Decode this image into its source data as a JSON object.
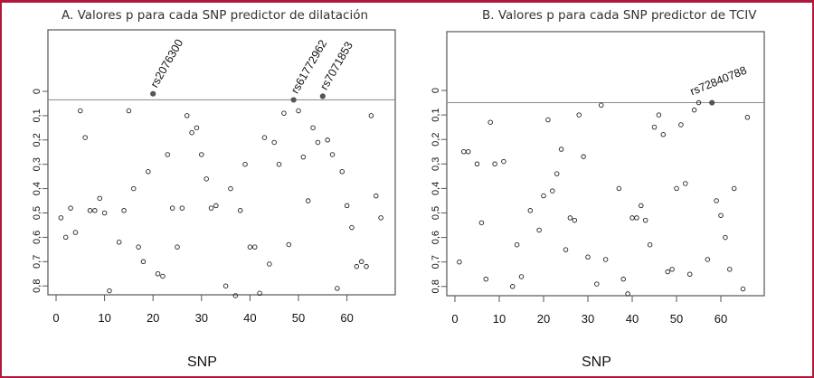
{
  "frame": {
    "border_color": "#b0173a"
  },
  "chart_data": [
    {
      "type": "scatter",
      "title": "A. Valores p para cada SNP predictor de dilatación",
      "xlabel": "SNP",
      "ylabel": "",
      "xlim": [
        0,
        67
      ],
      "ylim": [
        0.84,
        -0.12
      ],
      "y_inverted": true,
      "x_ticks": [
        0,
        10,
        20,
        30,
        40,
        50,
        60
      ],
      "y_ticks": [
        0,
        0.1,
        0.2,
        0.3,
        0.4,
        0.5,
        0.6,
        0.7,
        0.8
      ],
      "y_tick_labels": [
        "0",
        "0,1",
        "0,2",
        "0,3",
        "0,4",
        "0,5",
        "0,6",
        "0,7",
        "0,8"
      ],
      "threshold_line": 0.035,
      "grid": false,
      "x": [
        1,
        2,
        3,
        4,
        5,
        6,
        7,
        8,
        9,
        10,
        11,
        13,
        14,
        15,
        16,
        17,
        18,
        19,
        20,
        21,
        22,
        23,
        24,
        25,
        26,
        27,
        28,
        29,
        30,
        31,
        32,
        33,
        35,
        36,
        37,
        38,
        39,
        40,
        41,
        42,
        43,
        44,
        45,
        46,
        47,
        48,
        49,
        50,
        51,
        52,
        53,
        54,
        55,
        56,
        57,
        58,
        59,
        60,
        61,
        62,
        63,
        64,
        65,
        66,
        67
      ],
      "values": [
        0.52,
        0.6,
        0.48,
        0.58,
        0.08,
        0.19,
        0.49,
        0.49,
        0.44,
        0.5,
        0.82,
        0.62,
        0.49,
        0.08,
        0.4,
        0.64,
        0.7,
        0.33,
        0.01,
        0.75,
        0.76,
        0.26,
        0.48,
        0.64,
        0.48,
        0.1,
        0.17,
        0.15,
        0.26,
        0.36,
        0.48,
        0.47,
        0.8,
        0.4,
        0.84,
        0.49,
        0.3,
        0.64,
        0.64,
        0.83,
        0.19,
        0.71,
        0.21,
        0.3,
        0.09,
        0.63,
        0.035,
        0.08,
        0.27,
        0.45,
        0.15,
        0.21,
        0.02,
        0.2,
        0.26,
        0.81,
        0.33,
        0.47,
        0.56,
        0.72,
        0.7,
        0.72,
        0.1,
        0.43,
        0.52
      ],
      "highlighted": [
        {
          "x": 20,
          "y": 0.01,
          "label": "rs2076300"
        },
        {
          "x": 49,
          "y": 0.035,
          "label": "rs61772962"
        },
        {
          "x": 55,
          "y": 0.02,
          "label": "rs7071853"
        }
      ]
    },
    {
      "type": "scatter",
      "title": "B. Valores p para cada SNP predictor de TCIV",
      "xlabel": "SNP",
      "ylabel": "",
      "xlim": [
        0,
        67
      ],
      "ylim": [
        0.84,
        -0.12
      ],
      "y_inverted": true,
      "x_ticks": [
        0,
        10,
        20,
        30,
        40,
        50,
        60
      ],
      "y_ticks": [
        0,
        0.1,
        0.2,
        0.3,
        0.4,
        0.5,
        0.6,
        0.7,
        0.8
      ],
      "y_tick_labels": [
        "0",
        "0,1",
        "0,2",
        "0,3",
        "0,4",
        "0,5",
        "0,6",
        "0,7",
        "0,8"
      ],
      "threshold_line": 0.05,
      "grid": false,
      "x": [
        1,
        2,
        3,
        5,
        6,
        7,
        8,
        9,
        11,
        13,
        14,
        15,
        17,
        19,
        20,
        21,
        22,
        23,
        24,
        25,
        26,
        27,
        28,
        29,
        30,
        32,
        33,
        34,
        37,
        38,
        39,
        40,
        41,
        42,
        43,
        44,
        45,
        46,
        47,
        48,
        49,
        50,
        51,
        52,
        53,
        54,
        55,
        57,
        59,
        60,
        61,
        62,
        63,
        65,
        66
      ],
      "values": [
        0.7,
        0.25,
        0.25,
        0.3,
        0.54,
        0.77,
        0.13,
        0.3,
        0.29,
        0.8,
        0.63,
        0.76,
        0.49,
        0.57,
        0.43,
        0.12,
        0.41,
        0.34,
        0.24,
        0.65,
        0.52,
        0.53,
        0.1,
        0.27,
        0.68,
        0.79,
        0.06,
        0.69,
        0.4,
        0.77,
        0.83,
        0.52,
        0.52,
        0.47,
        0.53,
        0.63,
        0.15,
        0.1,
        0.18,
        0.74,
        0.73,
        0.4,
        0.14,
        0.38,
        0.75,
        0.08,
        0.05,
        0.69,
        0.45,
        0.51,
        0.6,
        0.73,
        0.4,
        0.81,
        0.11
      ],
      "highlighted": [
        {
          "x": 58,
          "y": 0.05,
          "label": "rs72840788"
        }
      ]
    }
  ]
}
